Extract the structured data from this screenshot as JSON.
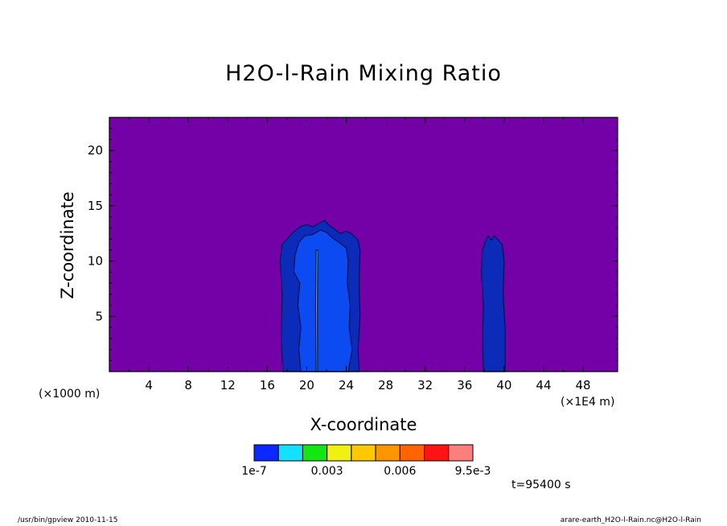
{
  "chart_data": {
    "type": "heatmap",
    "title": "H2O-l-Rain Mixing Ratio",
    "xlabel": "X-coordinate",
    "ylabel": "Z-coordinate",
    "x_unit_left": "(×1000 m)",
    "x_unit_right": "(×1E4 m)",
    "xlim": [
      0,
      51.5
    ],
    "ylim": [
      0,
      23
    ],
    "x_ticks": [
      4,
      8,
      12,
      16,
      20,
      24,
      28,
      32,
      36,
      40,
      44,
      48
    ],
    "y_ticks": [
      5,
      10,
      15,
      20
    ],
    "background_color": "#7400a8",
    "levels": {
      "colors": [
        "#0a28ff",
        "#14e1ff",
        "#14e614",
        "#f0f014",
        "#ffc800",
        "#ff9600",
        "#ff6400",
        "#ff1414",
        "#ff7e7e"
      ],
      "labels": [
        "1e-7",
        "0.003",
        "0.006",
        "9.5e-3"
      ]
    },
    "regions": [
      {
        "name": "cloud-main-outer",
        "color": "#0b2bb8",
        "polygon": [
          [
            17.6,
            0
          ],
          [
            17.4,
            3
          ],
          [
            17.5,
            7
          ],
          [
            17.3,
            10
          ],
          [
            17.5,
            11.5
          ],
          [
            18,
            12
          ],
          [
            18.4,
            12.4
          ],
          [
            18.9,
            12.8
          ],
          [
            19.3,
            13.1
          ],
          [
            20,
            13.3
          ],
          [
            20.6,
            13.1
          ],
          [
            21,
            13.3
          ],
          [
            21.4,
            13.5
          ],
          [
            21.8,
            13.7
          ],
          [
            22.2,
            13.3
          ],
          [
            22.8,
            12.9
          ],
          [
            23.4,
            12.5
          ],
          [
            24,
            12.7
          ],
          [
            24.5,
            12.5
          ],
          [
            25.2,
            11.9
          ],
          [
            25.4,
            11
          ],
          [
            25.3,
            8
          ],
          [
            25.4,
            5
          ],
          [
            25.2,
            2
          ],
          [
            25.3,
            0
          ]
        ]
      },
      {
        "name": "cloud-main-inner",
        "color": "#0c4bf2",
        "polygon": [
          [
            19.4,
            0
          ],
          [
            19.2,
            2
          ],
          [
            19.4,
            4
          ],
          [
            19.1,
            6
          ],
          [
            19.3,
            8
          ],
          [
            18.7,
            9
          ],
          [
            18.8,
            10.5
          ],
          [
            19.2,
            11.7
          ],
          [
            19.8,
            12.3
          ],
          [
            20.6,
            12.4
          ],
          [
            21.4,
            12.8
          ],
          [
            22,
            12.6
          ],
          [
            22.6,
            12.1
          ],
          [
            23.4,
            11.6
          ],
          [
            24,
            11.2
          ],
          [
            24.2,
            10
          ],
          [
            24.1,
            8
          ],
          [
            24.4,
            6
          ],
          [
            24.3,
            4
          ],
          [
            24.6,
            2
          ],
          [
            24.2,
            0
          ]
        ]
      },
      {
        "name": "cloud-right",
        "color": "#0b2bb8",
        "polygon": [
          [
            37.9,
            0
          ],
          [
            37.8,
            3
          ],
          [
            37.9,
            6
          ],
          [
            37.7,
            9
          ],
          [
            37.8,
            11
          ],
          [
            38.1,
            11.8
          ],
          [
            38.4,
            12.3
          ],
          [
            38.7,
            11.9
          ],
          [
            39,
            12.3
          ],
          [
            39.4,
            11.9
          ],
          [
            39.8,
            11.5
          ],
          [
            40,
            10
          ],
          [
            39.9,
            7
          ],
          [
            40.1,
            4
          ],
          [
            40.1,
            0
          ]
        ]
      },
      {
        "name": "rain-streak",
        "color": "#58d0c0",
        "polygon": [
          [
            20.95,
            0
          ],
          [
            20.9,
            6
          ],
          [
            20.95,
            11
          ],
          [
            21.12,
            11
          ],
          [
            21.08,
            6
          ],
          [
            21.1,
            0
          ]
        ]
      }
    ]
  },
  "time_label": "t=95400 s",
  "footer": {
    "left": "/usr/bin/gpview   2010-11-15",
    "right": "arare-earth_H2O-l-Rain.nc@H2O-l-Rain"
  }
}
